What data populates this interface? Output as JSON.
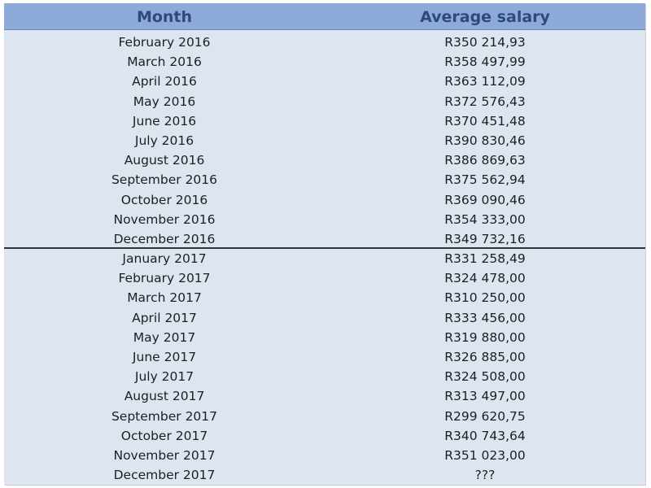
{
  "table": {
    "headers": {
      "month": "Month",
      "salary": "Average salary"
    },
    "colors": {
      "header_bg": "#8eaadb",
      "header_text": "#2f4a7a",
      "body_bg": "#dde6f0",
      "divider": "#333333"
    },
    "rows": [
      {
        "month": "February 2016",
        "salary": "R350 214,93"
      },
      {
        "month": "March 2016",
        "salary": "R358 497,99"
      },
      {
        "month": "April 2016",
        "salary": "R363 112,09"
      },
      {
        "month": "May 2016",
        "salary": "R372 576,43"
      },
      {
        "month": "June 2016",
        "salary": "R370 451,48"
      },
      {
        "month": "July 2016",
        "salary": "R390 830,46"
      },
      {
        "month": "August 2016",
        "salary": "R386 869,63"
      },
      {
        "month": "September 2016",
        "salary": "R375 562,94"
      },
      {
        "month": "October 2016",
        "salary": "R369 090,46"
      },
      {
        "month": "November 2016",
        "salary": "R354 333,00"
      },
      {
        "month": "December 2016",
        "salary": "R349 732,16"
      },
      {
        "month": "January 2017",
        "salary": "R331 258,49"
      },
      {
        "month": "February 2017",
        "salary": "R324 478,00"
      },
      {
        "month": "March 2017",
        "salary": "R310 250,00"
      },
      {
        "month": "April 2017",
        "salary": "R333 456,00"
      },
      {
        "month": "May 2017",
        "salary": "R319 880,00"
      },
      {
        "month": "June 2017",
        "salary": "R326 885,00"
      },
      {
        "month": "July 2017",
        "salary": "R324 508,00"
      },
      {
        "month": "August 2017",
        "salary": "R313 497,00"
      },
      {
        "month": "September 2017",
        "salary": "R299 620,75"
      },
      {
        "month": "October 2017",
        "salary": "R340 743,64"
      },
      {
        "month": "November 2017",
        "salary": "R351 023,00"
      },
      {
        "month": "December 2017",
        "salary": "???"
      }
    ]
  }
}
